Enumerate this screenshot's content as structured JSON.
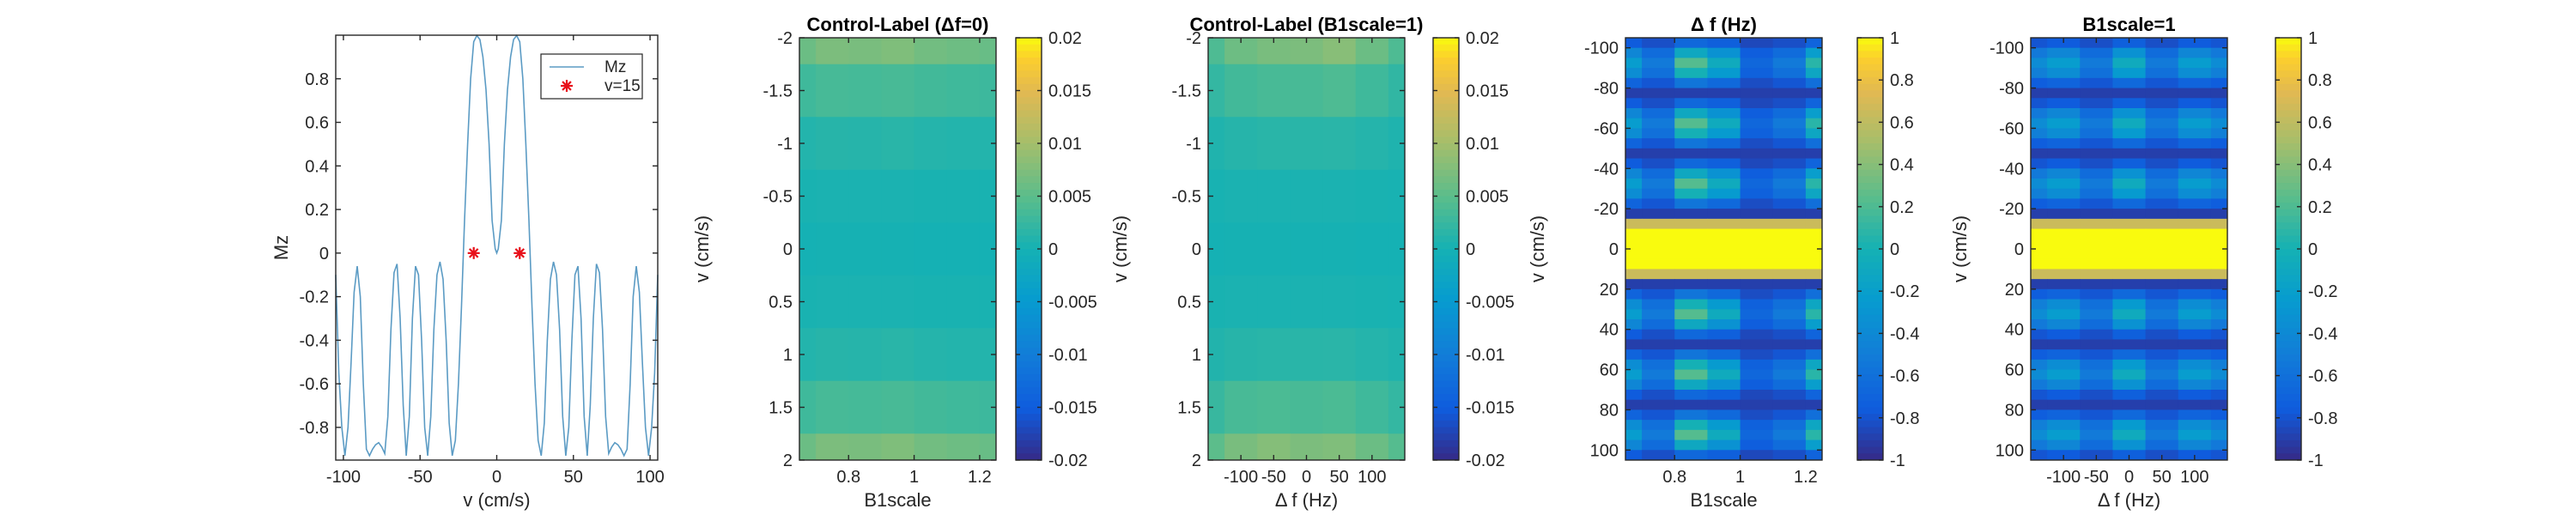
{
  "chart_data": [
    {
      "type": "line",
      "title": "",
      "xlabel": "v (cm/s)",
      "ylabel": "Mz",
      "xlim": [
        -105,
        105
      ],
      "ylim": [
        -0.95,
        1.0
      ],
      "xticks": [
        -100,
        -50,
        0,
        50,
        100
      ],
      "yticks": [
        0.8,
        0.6,
        0.4,
        0.2,
        0,
        -0.2,
        -0.4,
        -0.6,
        -0.8
      ],
      "series": [
        {
          "name": "Mz",
          "color": "#5b9bc4",
          "x": [
            -105,
            -103,
            -101,
            -99,
            -97,
            -95,
            -93,
            -91,
            -89,
            -87,
            -85,
            -83,
            -81,
            -79,
            -77,
            -75,
            -73,
            -71,
            -69,
            -67,
            -65,
            -63,
            -61,
            -59,
            -57,
            -55,
            -53,
            -51,
            -49,
            -47,
            -45,
            -43,
            -41,
            -39,
            -37,
            -35,
            -33,
            -31,
            -29,
            -27,
            -25,
            -23,
            -21,
            -19,
            -17,
            -15,
            -13,
            -11,
            -9,
            -7,
            -5,
            -3,
            -1,
            0,
            1,
            3,
            5,
            7,
            9,
            11,
            13,
            15,
            17,
            19,
            21,
            23,
            25,
            27,
            29,
            31,
            33,
            35,
            37,
            39,
            41,
            43,
            45,
            47,
            49,
            51,
            53,
            55,
            57,
            59,
            61,
            63,
            65,
            67,
            69,
            71,
            73,
            75,
            77,
            79,
            81,
            83,
            85,
            87,
            89,
            91,
            93,
            95,
            97,
            99,
            101,
            103,
            105
          ],
          "y": [
            -0.1,
            -0.55,
            -0.8,
            -0.93,
            -0.8,
            -0.5,
            -0.18,
            -0.06,
            -0.2,
            -0.6,
            -0.9,
            -0.93,
            -0.9,
            -0.88,
            -0.87,
            -0.89,
            -0.92,
            -0.75,
            -0.35,
            -0.09,
            -0.05,
            -0.3,
            -0.7,
            -0.93,
            -0.75,
            -0.3,
            -0.06,
            -0.1,
            -0.4,
            -0.8,
            -0.93,
            -0.75,
            -0.35,
            -0.1,
            -0.04,
            -0.12,
            -0.4,
            -0.78,
            -0.93,
            -0.86,
            -0.6,
            -0.25,
            0.15,
            0.5,
            0.8,
            0.97,
            0.998,
            0.98,
            0.9,
            0.75,
            0.5,
            0.15,
            0.02,
            0.0,
            0.02,
            0.15,
            0.5,
            0.75,
            0.9,
            0.98,
            0.998,
            0.97,
            0.8,
            0.5,
            0.15,
            -0.25,
            -0.6,
            -0.86,
            -0.93,
            -0.78,
            -0.4,
            -0.12,
            -0.04,
            -0.1,
            -0.35,
            -0.75,
            -0.93,
            -0.8,
            -0.4,
            -0.1,
            -0.06,
            -0.3,
            -0.75,
            -0.93,
            -0.7,
            -0.3,
            -0.05,
            -0.09,
            -0.35,
            -0.75,
            -0.92,
            -0.89,
            -0.87,
            -0.88,
            -0.9,
            -0.93,
            -0.9,
            -0.6,
            -0.2,
            -0.06,
            -0.18,
            -0.5,
            -0.8,
            -0.93,
            -0.8,
            -0.55,
            -0.1
          ]
        },
        {
          "name": "v=15",
          "color": "#e8101a",
          "marker": "asterisk",
          "x": [
            -15,
            15
          ],
          "y": [
            0,
            0
          ]
        }
      ],
      "legend": "top-right"
    },
    {
      "type": "heatmap",
      "title": "Control-Label (Δf=0)",
      "xlabel": "B1scale",
      "ylabel": "v (cm/s)",
      "xlim": [
        0.65,
        1.25
      ],
      "ylim_top": -2,
      "ylim_bottom": 2,
      "xticks": [
        "0.8",
        "1",
        "1.2"
      ],
      "xtick_values": [
        0.8,
        1.0,
        1.2
      ],
      "yticks": [
        "-2",
        "-1.5",
        "-1",
        "-0.5",
        "0",
        "0.5",
        "1",
        "1.5",
        "2"
      ],
      "ytick_values": [
        -2,
        -1.5,
        -1,
        -0.5,
        0,
        0.5,
        1,
        1.5,
        2
      ],
      "colorbar": {
        "min": -0.02,
        "max": 0.02,
        "ticks": [
          "0.02",
          "0.015",
          "0.01",
          "0.005",
          "0",
          "-0.005",
          "-0.01",
          "-0.015",
          "-0.02"
        ],
        "tick_values": [
          0.02,
          0.015,
          0.01,
          0.005,
          0,
          -0.005,
          -0.01,
          -0.015,
          -0.02
        ]
      },
      "x_edges": [
        0.65,
        0.7,
        0.8,
        0.9,
        1.0,
        1.1,
        1.2,
        1.25
      ],
      "y_edges": [
        -2,
        -1.75,
        -1.25,
        -0.75,
        -0.25,
        0.25,
        0.75,
        1.25,
        1.75,
        2
      ],
      "values": [
        [
          0.006,
          0.0072,
          0.007,
          0.0074,
          0.0065,
          0.0062,
          0.0058
        ],
        [
          0.003,
          0.0035,
          0.0034,
          0.0036,
          0.0032,
          0.003,
          0.0028
        ],
        [
          0.001,
          0.0013,
          0.0012,
          0.0014,
          0.0011,
          0.001,
          0.001
        ],
        [
          0.0003,
          0.0004,
          0.0004,
          0.0004,
          0.0003,
          0.0003,
          0.0003
        ],
        [
          0.0,
          0.0001,
          0.0001,
          0.0001,
          0.0,
          0.0,
          0.0
        ],
        [
          0.0003,
          0.0004,
          0.0004,
          0.0004,
          0.0003,
          0.0003,
          0.0003
        ],
        [
          0.001,
          0.0013,
          0.0012,
          0.0014,
          0.0011,
          0.001,
          0.001
        ],
        [
          0.003,
          0.0035,
          0.0034,
          0.0036,
          0.0032,
          0.003,
          0.0028
        ],
        [
          0.006,
          0.0072,
          0.007,
          0.0074,
          0.0065,
          0.0062,
          0.0058
        ]
      ]
    },
    {
      "type": "heatmap",
      "title": "Control-Label (B1scale=1)",
      "xlabel": "Δ f (Hz)",
      "ylabel": "v (cm/s)",
      "xlim": [
        -150,
        150
      ],
      "ylim_top": -2,
      "ylim_bottom": 2,
      "xticks": [
        "-100",
        "-50",
        "0",
        "50",
        "100"
      ],
      "xtick_values": [
        -100,
        -50,
        0,
        50,
        100
      ],
      "yticks": [
        "-2",
        "-1.5",
        "-1",
        "-0.5",
        "0",
        "0.5",
        "1",
        "1.5",
        "2"
      ],
      "ytick_values": [
        -2,
        -1.5,
        -1,
        -0.5,
        0,
        0.5,
        1,
        1.5,
        2
      ],
      "colorbar": {
        "min": -0.02,
        "max": 0.02,
        "ticks": [
          "0.02",
          "0.015",
          "0.01",
          "0.005",
          "0",
          "-0.005",
          "-0.01",
          "-0.015",
          "-0.02"
        ],
        "tick_values": [
          0.02,
          0.015,
          0.01,
          0.005,
          0,
          -0.005,
          -0.01,
          -0.015,
          -0.02
        ]
      },
      "x_edges": [
        -150,
        -125,
        -75,
        -25,
        25,
        75,
        125,
        150
      ],
      "y_edges": [
        -2,
        -1.75,
        -1.25,
        -0.75,
        -0.25,
        0.25,
        0.75,
        1.25,
        1.75,
        2
      ],
      "values": [
        [
          0.004,
          0.0062,
          0.007,
          0.0072,
          0.008,
          0.006,
          0.004
        ],
        [
          0.0022,
          0.0032,
          0.0036,
          0.0036,
          0.004,
          0.003,
          0.002
        ],
        [
          0.0008,
          0.0012,
          0.0014,
          0.0014,
          0.0015,
          0.0011,
          0.0007
        ],
        [
          0.0002,
          0.0004,
          0.0004,
          0.0004,
          0.0004,
          0.0003,
          0.0002
        ],
        [
          0.0,
          0.0001,
          0.0001,
          0.0001,
          0.0001,
          0.0,
          0.0
        ],
        [
          0.0003,
          0.0004,
          0.0004,
          0.0004,
          0.0004,
          0.0003,
          0.0002
        ],
        [
          0.0009,
          0.0013,
          0.0014,
          0.0014,
          0.0015,
          0.0011,
          0.0008
        ],
        [
          0.0025,
          0.0036,
          0.0038,
          0.0036,
          0.0038,
          0.003,
          0.0022
        ],
        [
          0.005,
          0.007,
          0.0078,
          0.0072,
          0.0075,
          0.006,
          0.0045
        ]
      ]
    },
    {
      "type": "heatmap",
      "title": "Δ f (Hz)",
      "xlabel": "B1scale",
      "ylabel": "v (cm/s)",
      "xlim": [
        0.65,
        1.25
      ],
      "ylim_top": -105,
      "ylim_bottom": 105,
      "xticks": [
        "0.8",
        "1",
        "1.2"
      ],
      "xtick_values": [
        0.8,
        1.0,
        1.2
      ],
      "yticks": [
        "-100",
        "-80",
        "-60",
        "-40",
        "-20",
        "0",
        "20",
        "40",
        "60",
        "80",
        "100"
      ],
      "ytick_values": [
        -100,
        -80,
        -60,
        -40,
        -20,
        0,
        20,
        40,
        60,
        80,
        100
      ],
      "colorbar": {
        "min": -1,
        "max": 1,
        "ticks": [
          "1",
          "0.8",
          "0.6",
          "0.4",
          "0.2",
          "0",
          "-0.2",
          "-0.4",
          "-0.6",
          "-0.8",
          "-1"
        ],
        "tick_values": [
          1,
          0.8,
          0.6,
          0.4,
          0.2,
          0,
          -0.2,
          -0.4,
          -0.6,
          -0.8,
          -1
        ]
      },
      "x_column_gains": [
        0.45,
        0.25,
        0.75,
        0.55,
        0.15,
        0.25,
        0.65
      ],
      "x_edges": [
        0.65,
        0.7,
        0.8,
        0.9,
        1.0,
        1.1,
        1.2,
        1.25
      ],
      "y_count": 42
    },
    {
      "type": "heatmap",
      "title": "B1scale=1",
      "xlabel": "Δ f (Hz)",
      "ylabel": "v (cm/s)",
      "xlim": [
        -150,
        150
      ],
      "ylim_top": -105,
      "ylim_bottom": 105,
      "xticks": [
        "-100",
        "-50",
        "0",
        "50",
        "100"
      ],
      "xtick_values": [
        -100,
        -50,
        0,
        50,
        100
      ],
      "yticks": [
        "-100",
        "-80",
        "-60",
        "-40",
        "-20",
        "0",
        "20",
        "40",
        "60",
        "80",
        "100"
      ],
      "ytick_values": [
        -100,
        -80,
        -60,
        -40,
        -20,
        0,
        20,
        40,
        60,
        80,
        100
      ],
      "colorbar": {
        "min": -1,
        "max": 1,
        "ticks": [
          "1",
          "0.8",
          "0.6",
          "0.4",
          "0.2",
          "0",
          "-0.2",
          "-0.4",
          "-0.6",
          "-0.8",
          "-1"
        ],
        "tick_values": [
          1,
          0.8,
          0.6,
          0.4,
          0.2,
          0,
          -0.2,
          -0.4,
          -0.6,
          -0.8,
          -1
        ]
      },
      "x_column_gains": [
        0.35,
        0.45,
        0.25,
        0.55,
        0.25,
        0.45,
        0.35
      ],
      "x_edges": [
        -150,
        -125,
        -75,
        -25,
        25,
        75,
        125,
        150
      ],
      "y_count": 42
    }
  ]
}
